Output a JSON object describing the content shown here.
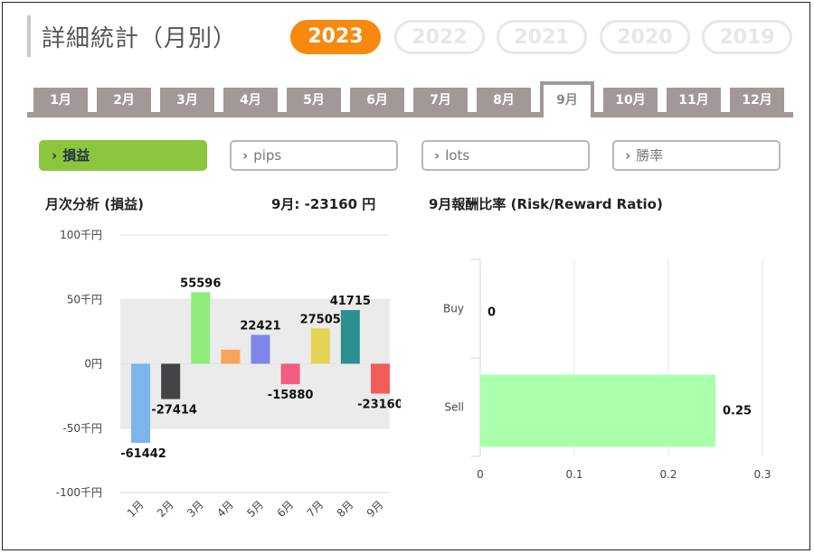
{
  "header": {
    "title": "詳細統計（月別）"
  },
  "years": [
    {
      "label": "2023",
      "active": true
    },
    {
      "label": "2022",
      "active": false
    },
    {
      "label": "2021",
      "active": false
    },
    {
      "label": "2020",
      "active": false
    },
    {
      "label": "2019",
      "active": false
    }
  ],
  "months": [
    "1月",
    "2月",
    "3月",
    "4月",
    "5月",
    "6月",
    "7月",
    "8月",
    "9月",
    "10月",
    "11月",
    "12月"
  ],
  "selected_month": "9月",
  "metrics": [
    {
      "label": "損益",
      "active": true
    },
    {
      "label": "pips",
      "active": false
    },
    {
      "label": "lots",
      "active": false
    },
    {
      "label": "勝率",
      "active": false
    }
  ],
  "left_panel": {
    "heading": "月次分析 (損益)",
    "summary": "9月:  -23160 円"
  },
  "right_panel": {
    "heading": "9月報酬比率 (Risk/Reward Ratio)"
  },
  "chart_data": [
    {
      "type": "bar",
      "title": "月次分析 (損益)",
      "categories": [
        "1月",
        "2月",
        "3月",
        "4月",
        "5月",
        "6月",
        "7月",
        "8月",
        "9月"
      ],
      "values": [
        -61442,
        -27414,
        55596,
        11000,
        22421,
        -15880,
        27505,
        41715,
        -23160
      ],
      "data_labels": [
        "-61442",
        "-27414",
        "55596",
        "",
        "22421",
        "-15880",
        "27505",
        "41715",
        "-23160"
      ],
      "colors": [
        "#7cb5ec",
        "#434348",
        "#90ed7d",
        "#f7a35c",
        "#8085e9",
        "#f15c80",
        "#e4d354",
        "#2b908f",
        "#f45b5b"
      ],
      "yticks": [
        {
          "value": 100000,
          "label": "100千円"
        },
        {
          "value": 50000,
          "label": "50千円"
        },
        {
          "value": 0,
          "label": "0円"
        },
        {
          "value": -50000,
          "label": "-50千円"
        },
        {
          "value": -100000,
          "label": "-100千円"
        }
      ],
      "ylim": [
        -100000,
        100000
      ],
      "band_range": [
        -50000,
        50000
      ],
      "band_color": "#ebebeb"
    },
    {
      "type": "bar",
      "orientation": "horizontal",
      "title": "9月報酬比率 (Risk/Reward Ratio)",
      "categories": [
        "Buy",
        "Sell"
      ],
      "values": [
        0,
        0.25
      ],
      "data_labels": [
        "0",
        "0.25"
      ],
      "color": "#aaffaa",
      "xticks": [
        "0",
        "0.1",
        "0.2",
        "0.3"
      ],
      "xlim": [
        0,
        0.3
      ]
    }
  ]
}
